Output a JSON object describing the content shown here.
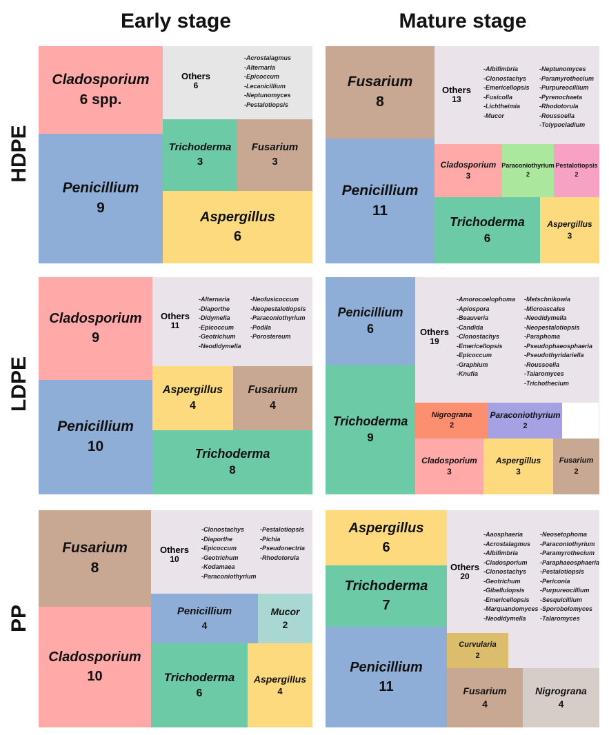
{
  "column_headers": [
    "Early stage",
    "Mature stage"
  ],
  "row_headers": [
    "HDPE",
    "LDPE",
    "PP"
  ],
  "colors": {
    "Cladosporium": "#ffaaa9",
    "Penicillium": "#8eadd7",
    "Fusarium": "#c9a893",
    "Trichoderma": "#6ccaa6",
    "Aspergillus": "#fcda7d",
    "Others": "#ebe3ea",
    "Others_early_hdpe": "#e6e6e6",
    "Paraconiothyrium_green": "#abe79d",
    "Paraconiothyrium_purple": "#a5a1e3",
    "Pestalotiopsis": "#f7a2c4",
    "Mucor": "#a9d8d2",
    "Nigrograna_orange": "#fb8f70",
    "Nigrograna_grey": "#d6cdc8",
    "Curvularia": "#dcbd6c"
  },
  "chart_data": [
    {
      "type": "treemap",
      "row": "HDPE",
      "stage": "Early stage",
      "tiles": [
        {
          "name": "Cladosporium",
          "count": "6 spp."
        },
        {
          "name": "Others",
          "count": "6",
          "genera": [
            "-Acrostalagmus",
            "-Alternaria",
            "-Epicoccum",
            "-Lecanicillium",
            "-Neptunomyces",
            "-Pestalotiopsis"
          ]
        },
        {
          "name": "Penicillium",
          "count": "9"
        },
        {
          "name": "Trichoderma",
          "count": "3"
        },
        {
          "name": "Fusarium",
          "count": "3"
        },
        {
          "name": "Aspergillus",
          "count": "6"
        }
      ]
    },
    {
      "type": "treemap",
      "row": "HDPE",
      "stage": "Mature stage",
      "tiles": [
        {
          "name": "Fusarium",
          "count": "8"
        },
        {
          "name": "Others",
          "count": "13",
          "genera": [
            "-Albifimbria",
            "-Clonostachys",
            "-Emericellopsis",
            "-Fusicolla",
            "-Lichtheimia",
            "-Mucor"
          ],
          "genera2": [
            "-Neptunomyces",
            "-Paramyrothecium",
            "-Purpureocillium",
            "-Pyrenochaeta",
            "-Rhodotorula",
            "-Roussoella",
            "-Tolypocladium"
          ]
        },
        {
          "name": "Penicillium",
          "count": "11"
        },
        {
          "name": "Cladosporium",
          "count": "3"
        },
        {
          "name": "Paraconiothyrium",
          "count": "2"
        },
        {
          "name": "Pestalotiopsis",
          "count": "2"
        },
        {
          "name": "Trichoderma",
          "count": "6"
        },
        {
          "name": "Aspergillus",
          "count": "3"
        }
      ]
    },
    {
      "type": "treemap",
      "row": "LDPE",
      "stage": "Early stage",
      "tiles": [
        {
          "name": "Cladosporium",
          "count": "9"
        },
        {
          "name": "Others",
          "count": "11",
          "genera": [
            "-Alternaria",
            "-Diaporthe",
            "-Didymella",
            "-Epicoccum",
            "-Geotrichum",
            "-Neodidymella"
          ],
          "genera2": [
            "-Neofusicoccum",
            "-Neopestalotiopsis",
            "-Paraconiothyrium",
            "-Podila",
            "-Porostereum"
          ]
        },
        {
          "name": "Penicillium",
          "count": "10"
        },
        {
          "name": "Aspergillus",
          "count": "4"
        },
        {
          "name": "Fusarium",
          "count": "4"
        },
        {
          "name": "Trichoderma",
          "count": "8"
        }
      ]
    },
    {
      "type": "treemap",
      "row": "LDPE",
      "stage": "Mature stage",
      "tiles": [
        {
          "name": "Penicillium",
          "count": "6"
        },
        {
          "name": "Others",
          "count": "19",
          "genera": [
            "-Amorocoelophoma",
            "-Apiospora",
            "-Beauveria",
            "-Candida",
            "-Clonostachys",
            "-Emericellopsis",
            "-Epicoccum",
            "-Graphium",
            "-Knufia"
          ],
          "genera2": [
            "-Metschnikowia",
            "-Microascales",
            "-Neodidymella",
            "-Neopestalotiopsis",
            "-Paraphoma",
            "-Pseudophaeosphaeria",
            "-Pseudothyridariella",
            "-Roussoella",
            "-Talaromyces",
            "-Trichothecium"
          ]
        },
        {
          "name": "Trichoderma",
          "count": "9"
        },
        {
          "name": "Nigrograna",
          "count": "2"
        },
        {
          "name": "Paraconiothyrium",
          "count": "2"
        },
        {
          "name": "Cladosporium",
          "count": "3"
        },
        {
          "name": "Aspergillus",
          "count": "3"
        },
        {
          "name": "Fusarium",
          "count": "2"
        }
      ]
    },
    {
      "type": "treemap",
      "row": "PP",
      "stage": "Early stage",
      "tiles": [
        {
          "name": "Fusarium",
          "count": "8"
        },
        {
          "name": "Others",
          "count": "10",
          "genera": [
            "-Clonostachys",
            "-Diaporthe",
            "-Epicoccum",
            "-Geotrichum",
            "-Kodamaea",
            "-Paraconiothyrium"
          ],
          "genera2": [
            "-Pestalotiopsis",
            "-Pichia",
            "-Pseudonectria",
            "-Rhodotorula"
          ]
        },
        {
          "name": "Cladosporium",
          "count": "10"
        },
        {
          "name": "Penicillium",
          "count": "4"
        },
        {
          "name": "Mucor",
          "count": "2"
        },
        {
          "name": "Trichoderma",
          "count": "6"
        },
        {
          "name": "Aspergillus",
          "count": "4"
        }
      ]
    },
    {
      "type": "treemap",
      "row": "PP",
      "stage": "Mature stage",
      "tiles": [
        {
          "name": "Aspergillus",
          "count": "6"
        },
        {
          "name": "Others",
          "count": "20",
          "genera": [
            "-Aaosphaeria",
            "-Acrostalagmus",
            "-Albifimbria",
            "-Cladosporium",
            "-Clonostachys",
            "-Geotrichum",
            "-Gibellulopsis",
            "-Emericellopsis",
            "-Marquandomyces",
            "-Neodidymella"
          ],
          "genera2": [
            "-Neosetophoma",
            "-Paraconiothyrium",
            "-Paramyrothecium",
            "-Paraphaeosphaeria",
            "-Pestalotiopsis",
            "-Periconia",
            "-Purpureocillium",
            "-Sesquicillium",
            "-Sporobolomyces",
            "-Talaromyces"
          ]
        },
        {
          "name": "Trichoderma",
          "count": "7"
        },
        {
          "name": "Penicillium",
          "count": "11"
        },
        {
          "name": "Curvularia",
          "count": "2"
        },
        {
          "name": "Fusarium",
          "count": "4"
        },
        {
          "name": "Nigrograna",
          "count": "4"
        }
      ]
    }
  ]
}
